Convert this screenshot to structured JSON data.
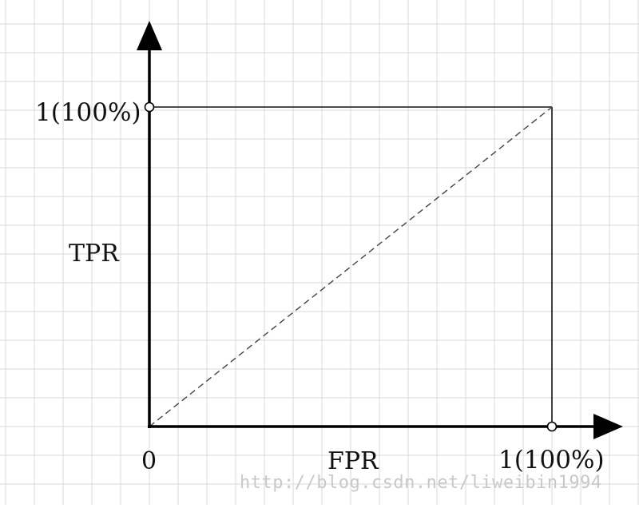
{
  "diagram": {
    "y_axis_label": "TPR",
    "x_axis_label": "FPR",
    "y_tick_label": "1(100%)",
    "x_tick_label": "1(100%)",
    "origin_label": "0",
    "watermark": "http://blog.csdn.net/liweibin1994",
    "colors": {
      "axis": "#000000",
      "grid": "#d9d9d9",
      "box": "#111111",
      "diagonal": "#444444",
      "watermark": "#c9c9c9"
    }
  }
}
